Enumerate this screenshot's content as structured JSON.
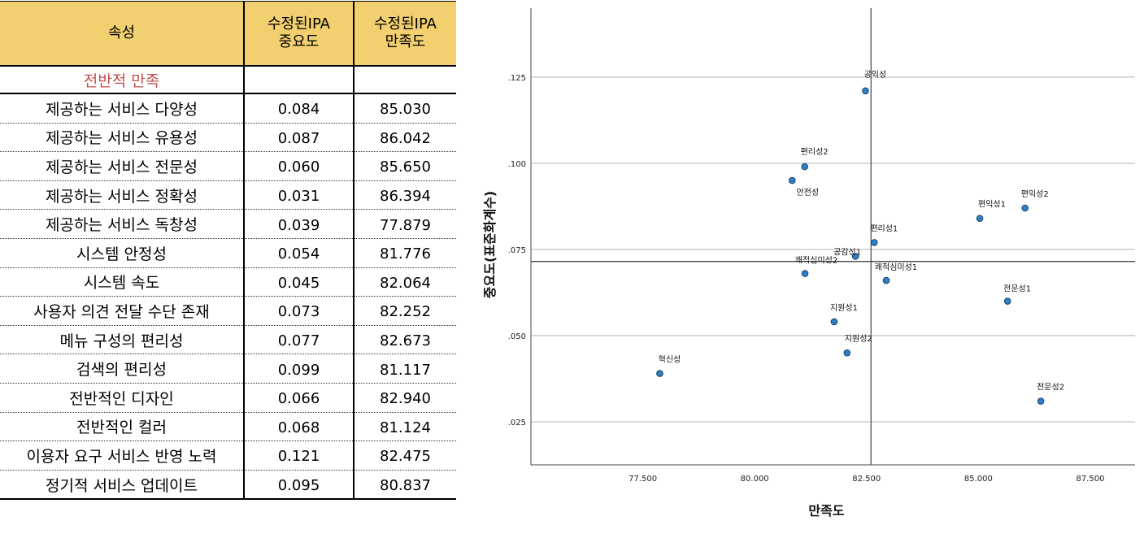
{
  "table": {
    "headers": [
      "속성",
      "수정된IPA\n중요도",
      "수정된IPA\n만족도"
    ],
    "section_label": "전반적 만족",
    "rows": [
      {
        "attr": "제공하는 서비스 다양성",
        "importance": "0.084",
        "satisfaction": "85.030"
      },
      {
        "attr": "제공하는 서비스 유용성",
        "importance": "0.087",
        "satisfaction": "86.042"
      },
      {
        "attr": "제공하는 서비스 전문성",
        "importance": "0.060",
        "satisfaction": "85.650"
      },
      {
        "attr": "제공하는 서비스 정확성",
        "importance": "0.031",
        "satisfaction": "86.394"
      },
      {
        "attr": "제공하는 서비스 독창성",
        "importance": "0.039",
        "satisfaction": "77.879"
      },
      {
        "attr": "시스템 안정성",
        "importance": "0.054",
        "satisfaction": "81.776"
      },
      {
        "attr": "시스템 속도",
        "importance": "0.045",
        "satisfaction": "82.064"
      },
      {
        "attr": "사용자 의견 전달 수단 존재",
        "importance": "0.073",
        "satisfaction": "82.252"
      },
      {
        "attr": "메뉴 구성의 편리성",
        "importance": "0.077",
        "satisfaction": "82.673"
      },
      {
        "attr": "검색의 편리성",
        "importance": "0.099",
        "satisfaction": "81.117"
      },
      {
        "attr": "전반적인 디자인",
        "importance": "0.066",
        "satisfaction": "82.940"
      },
      {
        "attr": "전반적인 컬러",
        "importance": "0.068",
        "satisfaction": "81.124"
      },
      {
        "attr": "이용자 요구 서비스 반영 노력",
        "importance": "0.121",
        "satisfaction": "82.475"
      },
      {
        "attr": "정기적 서비스 업데이트",
        "importance": "0.095",
        "satisfaction": "80.837"
      }
    ]
  },
  "chart_data": {
    "type": "scatter",
    "xlabel": "만족도",
    "ylabel": "중요도(표준화계수)",
    "xlim": [
      75.0,
      88.5
    ],
    "ylim": [
      0.0125,
      0.145
    ],
    "x_ticks": [
      77.5,
      80.0,
      82.5,
      85.0,
      87.5
    ],
    "x_tick_labels": [
      "77.500",
      "80.000",
      "82.500",
      "85.000",
      "87.500"
    ],
    "y_ticks": [
      0.025,
      0.05,
      0.075,
      0.1,
      0.125
    ],
    "y_tick_labels": [
      ".025",
      ".050",
      ".075",
      ".100",
      ".125"
    ],
    "grid": "horizontal",
    "reference_lines": {
      "x": 82.6,
      "y": 0.0715
    },
    "point_color": "#2f7fc6",
    "points": [
      {
        "label": "편익성1",
        "x": 85.03,
        "y": 0.084
      },
      {
        "label": "편익성2",
        "x": 86.042,
        "y": 0.087
      },
      {
        "label": "전문성1",
        "x": 85.65,
        "y": 0.06
      },
      {
        "label": "전문성2",
        "x": 86.394,
        "y": 0.031
      },
      {
        "label": "혁신성",
        "x": 77.879,
        "y": 0.039
      },
      {
        "label": "지원성1",
        "x": 81.776,
        "y": 0.054
      },
      {
        "label": "지원성2",
        "x": 82.064,
        "y": 0.045
      },
      {
        "label": "공감성1",
        "x": 82.252,
        "y": 0.073
      },
      {
        "label": "편리성1",
        "x": 82.673,
        "y": 0.077
      },
      {
        "label": "편리성2",
        "x": 81.117,
        "y": 0.099
      },
      {
        "label": "쾌적심미성1",
        "x": 82.94,
        "y": 0.066
      },
      {
        "label": "쾌적심미성2",
        "x": 81.124,
        "y": 0.068
      },
      {
        "label": "공익성",
        "x": 82.475,
        "y": 0.121
      },
      {
        "label": "안전성",
        "x": 80.837,
        "y": 0.095
      }
    ]
  }
}
